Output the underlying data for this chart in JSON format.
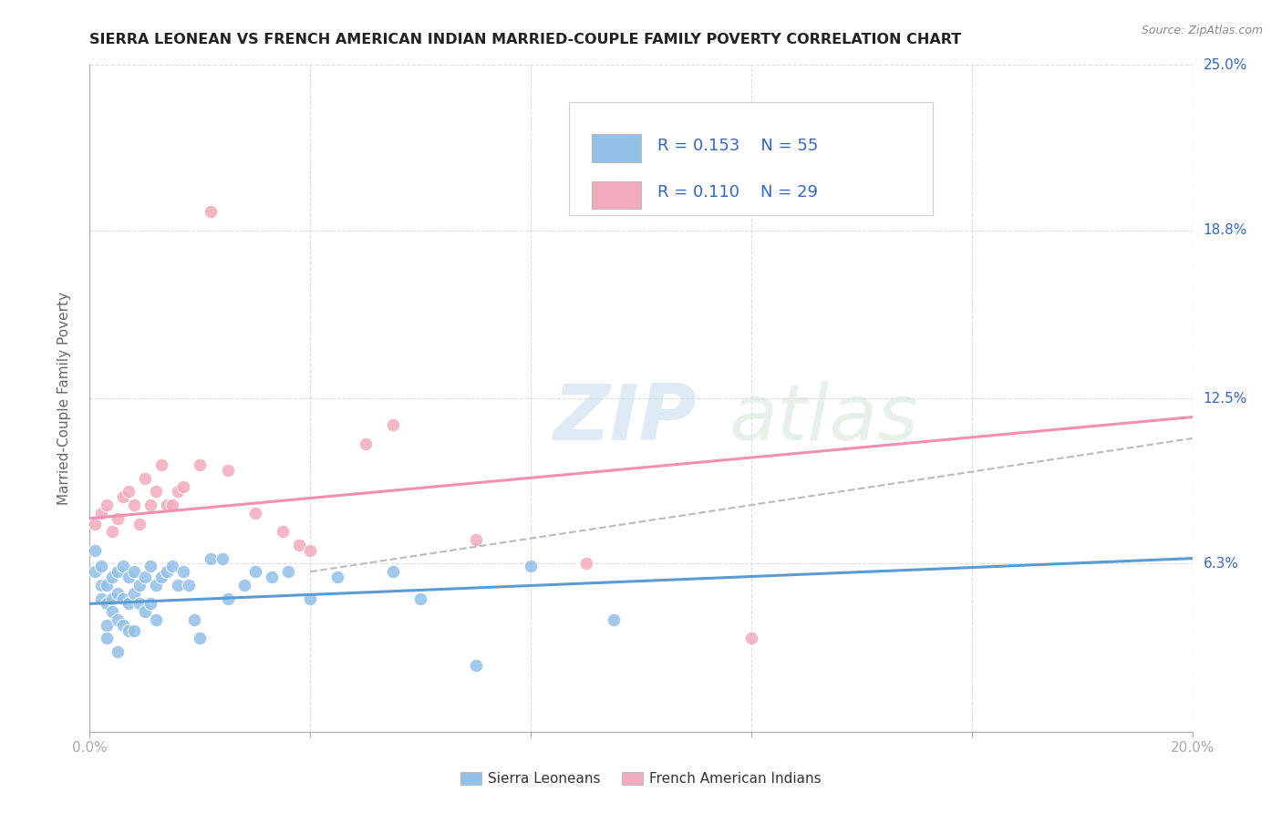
{
  "title": "SIERRA LEONEAN VS FRENCH AMERICAN INDIAN MARRIED-COUPLE FAMILY POVERTY CORRELATION CHART",
  "source": "Source: ZipAtlas.com",
  "ylabel": "Married-Couple Family Poverty",
  "xlabel": "",
  "xlim": [
    0.0,
    0.2
  ],
  "ylim": [
    0.0,
    0.25
  ],
  "ytick_positions": [
    0.0,
    0.063,
    0.125,
    0.188,
    0.25
  ],
  "ytick_labels": [
    "",
    "6.3%",
    "12.5%",
    "18.8%",
    "25.0%"
  ],
  "xtick_positions": [
    0.0,
    0.04,
    0.08,
    0.12,
    0.16,
    0.2
  ],
  "xtick_labels": [
    "0.0%",
    "",
    "",
    "",
    "",
    "20.0%"
  ],
  "watermark_line1": "ZIP",
  "watermark_line2": "atlas",
  "legend_r1": "R = 0.153",
  "legend_n1": "N = 55",
  "legend_r2": "R = 0.110",
  "legend_n2": "N = 29",
  "blue_color": "#92C0E8",
  "pink_color": "#F2ABBC",
  "blue_line_color": "#5B9BD5",
  "pink_line_color": "#F48FB1",
  "dashed_line_color": "#BBBBBB",
  "label1": "Sierra Leoneans",
  "label2": "French American Indians",
  "blue_scatter_x": [
    0.001,
    0.001,
    0.002,
    0.002,
    0.002,
    0.003,
    0.003,
    0.003,
    0.003,
    0.004,
    0.004,
    0.004,
    0.005,
    0.005,
    0.005,
    0.005,
    0.006,
    0.006,
    0.006,
    0.007,
    0.007,
    0.007,
    0.008,
    0.008,
    0.008,
    0.009,
    0.009,
    0.01,
    0.01,
    0.011,
    0.011,
    0.012,
    0.012,
    0.013,
    0.014,
    0.015,
    0.016,
    0.017,
    0.018,
    0.019,
    0.02,
    0.022,
    0.024,
    0.025,
    0.028,
    0.03,
    0.033,
    0.036,
    0.04,
    0.045,
    0.055,
    0.06,
    0.07,
    0.08,
    0.095
  ],
  "blue_scatter_y": [
    0.068,
    0.06,
    0.055,
    0.05,
    0.062,
    0.048,
    0.055,
    0.04,
    0.035,
    0.058,
    0.05,
    0.045,
    0.06,
    0.052,
    0.042,
    0.03,
    0.062,
    0.05,
    0.04,
    0.058,
    0.048,
    0.038,
    0.06,
    0.052,
    0.038,
    0.055,
    0.048,
    0.058,
    0.045,
    0.062,
    0.048,
    0.055,
    0.042,
    0.058,
    0.06,
    0.062,
    0.055,
    0.06,
    0.055,
    0.042,
    0.035,
    0.065,
    0.065,
    0.05,
    0.055,
    0.06,
    0.058,
    0.06,
    0.05,
    0.058,
    0.06,
    0.05,
    0.025,
    0.062,
    0.042
  ],
  "pink_scatter_x": [
    0.001,
    0.002,
    0.003,
    0.004,
    0.005,
    0.006,
    0.007,
    0.008,
    0.009,
    0.01,
    0.011,
    0.012,
    0.013,
    0.014,
    0.015,
    0.016,
    0.017,
    0.02,
    0.022,
    0.025,
    0.03,
    0.035,
    0.038,
    0.04,
    0.05,
    0.055,
    0.07,
    0.09,
    0.12
  ],
  "pink_scatter_y": [
    0.078,
    0.082,
    0.085,
    0.075,
    0.08,
    0.088,
    0.09,
    0.085,
    0.078,
    0.095,
    0.085,
    0.09,
    0.1,
    0.085,
    0.085,
    0.09,
    0.092,
    0.1,
    0.195,
    0.098,
    0.082,
    0.075,
    0.07,
    0.068,
    0.108,
    0.115,
    0.072,
    0.063,
    0.035
  ],
  "blue_line_x": [
    0.0,
    0.2
  ],
  "blue_line_y": [
    0.048,
    0.065
  ],
  "pink_line_x": [
    0.0,
    0.2
  ],
  "pink_line_y": [
    0.08,
    0.118
  ],
  "dashed_line_x": [
    0.04,
    0.2
  ],
  "dashed_line_y": [
    0.06,
    0.11
  ],
  "bg_color": "#FFFFFF",
  "grid_color": "#DDDDDD"
}
